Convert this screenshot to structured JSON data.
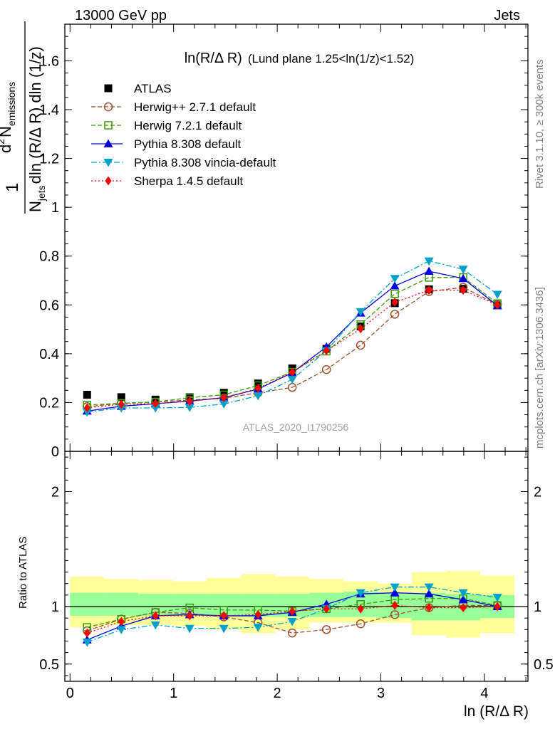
{
  "header": {
    "beam": "13000 GeV pp",
    "category": "Jets"
  },
  "side_labels": {
    "rivet": "Rivet 3.1.10, ≥ 300k events",
    "mcplots": "mcplots.cern.ch [arXiv:1306.3436]"
  },
  "watermark": "ATLAS_2020_I1790256",
  "chart_data": [
    {
      "type": "line",
      "title_main": "ln(R/Δ R)",
      "title_sub": "(Lund plane 1.25<ln(1/z)<1.52)",
      "ylabel_parts": {
        "one": "1",
        "num_d": "d",
        "num_exp": "2",
        "num_N": "N",
        "num_sub": "emissions",
        "den_N": "N",
        "den_sub": "jets",
        "den_rest": "dln (R/Δ R) dln (1/z)"
      },
      "xlim": [
        -0.05,
        4.42
      ],
      "ylim": [
        0,
        1.75
      ],
      "yticks": [
        0,
        0.2,
        0.4,
        0.6,
        0.8,
        1,
        1.2,
        1.4,
        1.6
      ],
      "ytick_labels": [
        "0",
        "0.2",
        "0.4",
        "0.6",
        "0.8",
        "1",
        "1.2",
        "1.4",
        "1.6"
      ],
      "x": [
        0.165,
        0.495,
        0.825,
        1.155,
        1.485,
        1.815,
        2.145,
        2.475,
        2.805,
        3.135,
        3.465,
        3.795,
        4.125
      ],
      "bin_edges": [
        0.0,
        0.33,
        0.66,
        0.99,
        1.32,
        1.65,
        1.98,
        2.31,
        2.64,
        2.97,
        3.3,
        3.63,
        3.96,
        4.29
      ],
      "legend_position": "top-left",
      "series": [
        {
          "name": "ATLAS",
          "color": "#000000",
          "marker": "square-filled",
          "line": "none",
          "values": [
            0.232,
            0.222,
            0.212,
            0.222,
            0.24,
            0.278,
            0.34,
            0.42,
            0.512,
            0.607,
            0.664,
            0.666,
            0.598
          ]
        },
        {
          "name": "Herwig++ 2.7.1 default",
          "color": "#a0522d",
          "marker": "circle-open",
          "line": "dashed",
          "values": [
            0.183,
            0.197,
            0.202,
            0.21,
            0.218,
            0.24,
            0.262,
            0.335,
            0.435,
            0.562,
            0.655,
            0.672,
            0.602
          ]
        },
        {
          "name": "Herwig 7.2.1 default",
          "color": "#3a9b10",
          "marker": "square-open",
          "line": "dashed",
          "values": [
            0.19,
            0.197,
            0.202,
            0.22,
            0.232,
            0.27,
            0.325,
            0.41,
            0.52,
            0.645,
            0.712,
            0.713,
            0.606
          ]
        },
        {
          "name": "Pythia 8.308 default",
          "color": "#0000dd",
          "marker": "triangle-up",
          "line": "solid",
          "values": [
            0.165,
            0.185,
            0.195,
            0.206,
            0.22,
            0.255,
            0.322,
            0.428,
            0.567,
            0.678,
            0.738,
            0.708,
            0.597
          ]
        },
        {
          "name": "Pythia 8.308 vincia-default",
          "color": "#00a0c8",
          "marker": "triangle-down",
          "line": "dashdot",
          "values": [
            0.161,
            0.178,
            0.178,
            0.18,
            0.194,
            0.228,
            0.295,
            0.412,
            0.572,
            0.708,
            0.78,
            0.746,
            0.643
          ]
        },
        {
          "name": "Sherpa 1.4.5 default",
          "color": "#ff0000",
          "marker": "diamond",
          "line": "dotted",
          "values": [
            0.178,
            0.193,
            0.196,
            0.205,
            0.22,
            0.258,
            0.325,
            0.412,
            0.502,
            0.611,
            0.66,
            0.66,
            0.6
          ]
        }
      ]
    },
    {
      "type": "line",
      "ylabel": "Ratio to ATLAS",
      "xlabel": "ln (R/Δ R)",
      "xlim": [
        -0.05,
        4.42
      ],
      "ylim": [
        0.35,
        2.35
      ],
      "yticks": [
        0.5,
        1,
        2
      ],
      "ytick_labels": [
        "0.5",
        "1",
        "2"
      ],
      "xticks": [
        0,
        1,
        2,
        3,
        4
      ],
      "xtick_labels": [
        "0",
        "1",
        "2",
        "3",
        "4"
      ],
      "reference_line": 1,
      "bin_edges": [
        0.0,
        0.33,
        0.66,
        0.99,
        1.32,
        1.65,
        1.98,
        2.31,
        2.64,
        2.97,
        3.3,
        3.63,
        3.96,
        4.29
      ],
      "band_inner": {
        "color": "#99ff99",
        "low": [
          0.92,
          0.92,
          0.92,
          0.92,
          0.91,
          0.91,
          0.91,
          0.91,
          0.91,
          0.9,
          0.88,
          0.88,
          0.9
        ],
        "high": [
          1.12,
          1.12,
          1.11,
          1.11,
          1.11,
          1.11,
          1.11,
          1.12,
          1.13,
          1.12,
          1.12,
          1.11,
          1.1
        ]
      },
      "band_outer": {
        "color": "#ffff99",
        "low": [
          0.82,
          0.84,
          0.84,
          0.83,
          0.8,
          0.77,
          0.8,
          0.86,
          0.86,
          0.86,
          0.75,
          0.73,
          0.77
        ],
        "high": [
          1.26,
          1.24,
          1.23,
          1.22,
          1.25,
          1.28,
          1.26,
          1.24,
          1.22,
          1.2,
          1.3,
          1.31,
          1.27
        ]
      },
      "x": [
        0.165,
        0.495,
        0.825,
        1.155,
        1.485,
        1.815,
        2.145,
        2.475,
        2.805,
        3.135,
        3.465,
        3.795,
        4.125
      ],
      "series": [
        {
          "name": "ATLAS",
          "color": "#000000",
          "marker": "none",
          "line": "none",
          "values": [
            1,
            1,
            1,
            1,
            1,
            1,
            1,
            1,
            1,
            1,
            1,
            1,
            1
          ]
        },
        {
          "name": "Herwig++ 2.7.1 default",
          "color": "#a0522d",
          "marker": "circle-open",
          "line": "dashed",
          "values": [
            0.79,
            0.89,
            0.95,
            0.94,
            0.91,
            0.86,
            0.77,
            0.8,
            0.85,
            0.93,
            0.99,
            1.01,
            1.01
          ]
        },
        {
          "name": "Herwig 7.2.1 default",
          "color": "#3a9b10",
          "marker": "square-open",
          "line": "dashed",
          "values": [
            0.82,
            0.89,
            0.95,
            0.99,
            0.97,
            0.97,
            0.96,
            0.98,
            1.02,
            1.06,
            1.07,
            1.07,
            1.01
          ]
        },
        {
          "name": "Pythia 8.308 default",
          "color": "#0000dd",
          "marker": "triangle-up",
          "line": "solid",
          "values": [
            0.71,
            0.83,
            0.92,
            0.93,
            0.92,
            0.92,
            0.95,
            1.02,
            1.11,
            1.12,
            1.11,
            1.06,
            1.0
          ]
        },
        {
          "name": "Pythia 8.308 vincia-default",
          "color": "#00a0c8",
          "marker": "triangle-down",
          "line": "dashdot",
          "values": [
            0.69,
            0.8,
            0.84,
            0.81,
            0.81,
            0.82,
            0.87,
            0.98,
            1.12,
            1.17,
            1.17,
            1.12,
            1.08
          ]
        },
        {
          "name": "Sherpa 1.4.5 default",
          "color": "#ff0000",
          "marker": "diamond",
          "line": "dotted",
          "values": [
            0.77,
            0.87,
            0.92,
            0.92,
            0.92,
            0.93,
            0.96,
            0.98,
            0.98,
            1.01,
            0.99,
            0.99,
            1.0
          ]
        }
      ]
    }
  ]
}
